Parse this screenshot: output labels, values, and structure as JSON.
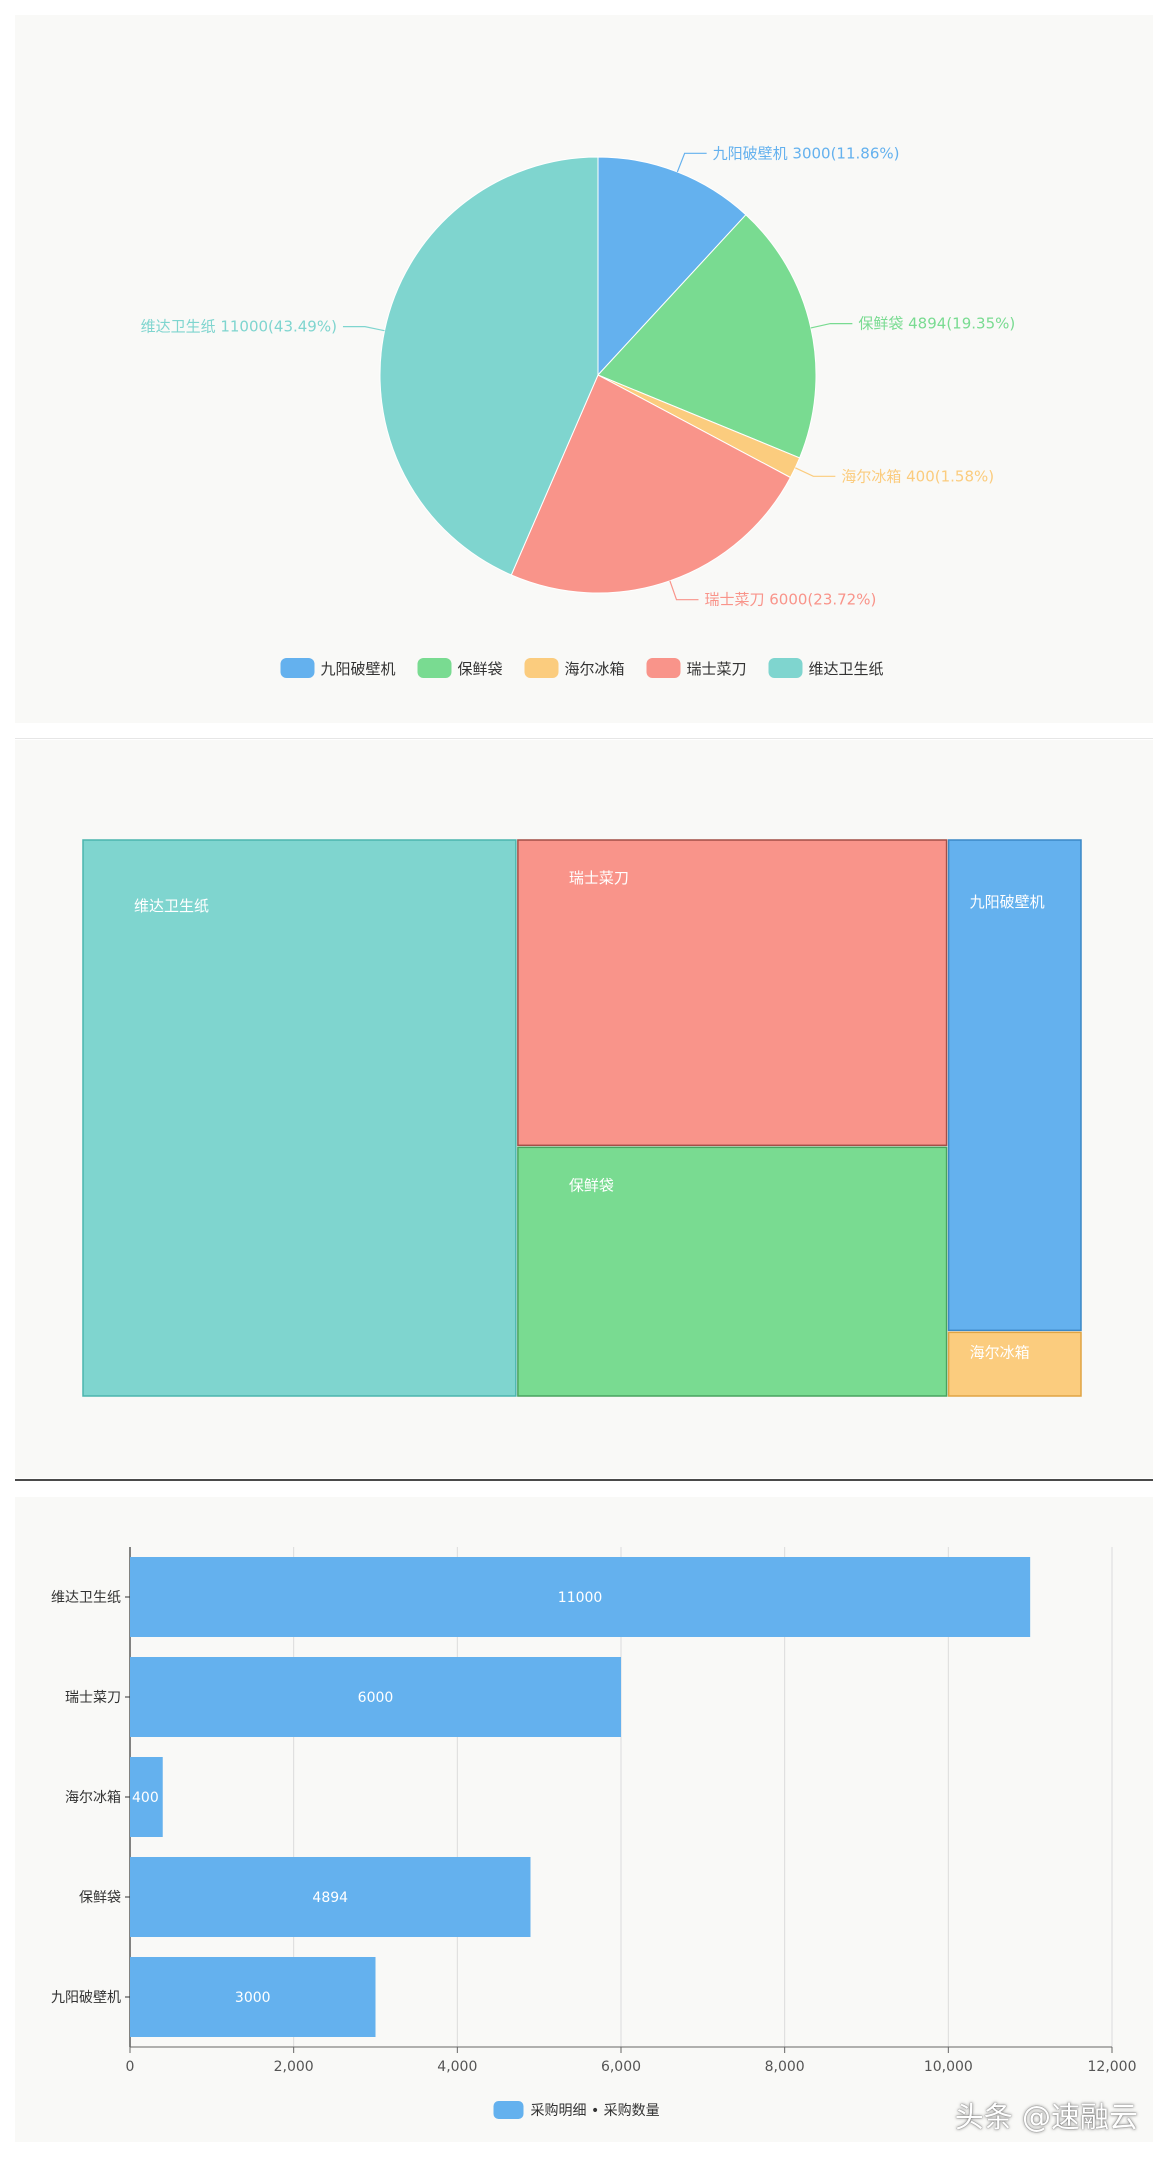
{
  "chart_data": [
    {
      "type": "pie",
      "legend_position": "bottom",
      "categories": [
        "九阳破壁机",
        "保鲜袋",
        "海尔冰箱",
        "瑞士菜刀",
        "维达卫生纸"
      ],
      "values": [
        3000,
        4894,
        400,
        6000,
        11000
      ],
      "labels": [
        "九阳破壁机 3000(11.86%)",
        "保鲜袋 4894(19.35%)",
        "海尔冰箱 400(1.58%)",
        "瑞士菜刀 6000(23.72%)",
        "维达卫生纸 11000(43.49%)"
      ],
      "colors": [
        "#64b1ee",
        "#79db91",
        "#fbcc7e",
        "#f9948a",
        "#7fd5cf"
      ]
    },
    {
      "type": "treemap",
      "categories": [
        "维达卫生纸",
        "瑞士菜刀",
        "保鲜袋",
        "九阳破壁机",
        "海尔冰箱"
      ],
      "values": [
        11000,
        6000,
        4894,
        3000,
        400
      ],
      "colors": [
        "#7fd5cf",
        "#f9948a",
        "#79db91",
        "#64b1ee",
        "#fbcc7e"
      ]
    },
    {
      "type": "bar",
      "orientation": "horizontal",
      "categories": [
        "维达卫生纸",
        "瑞士菜刀",
        "海尔冰箱",
        "保鲜袋",
        "九阳破壁机"
      ],
      "series": [
        {
          "name": "采购明细 • 采购数量",
          "values": [
            11000,
            6000,
            400,
            4894,
            3000
          ]
        }
      ],
      "xlim": [
        0,
        12000
      ],
      "x_ticks": [
        "0",
        "2,000",
        "4,000",
        "6,000",
        "8,000",
        "10,000",
        "12,000"
      ],
      "grid": true,
      "legend_position": "bottom",
      "color": "#64b1ee"
    }
  ],
  "watermark": "头条 @速融云"
}
